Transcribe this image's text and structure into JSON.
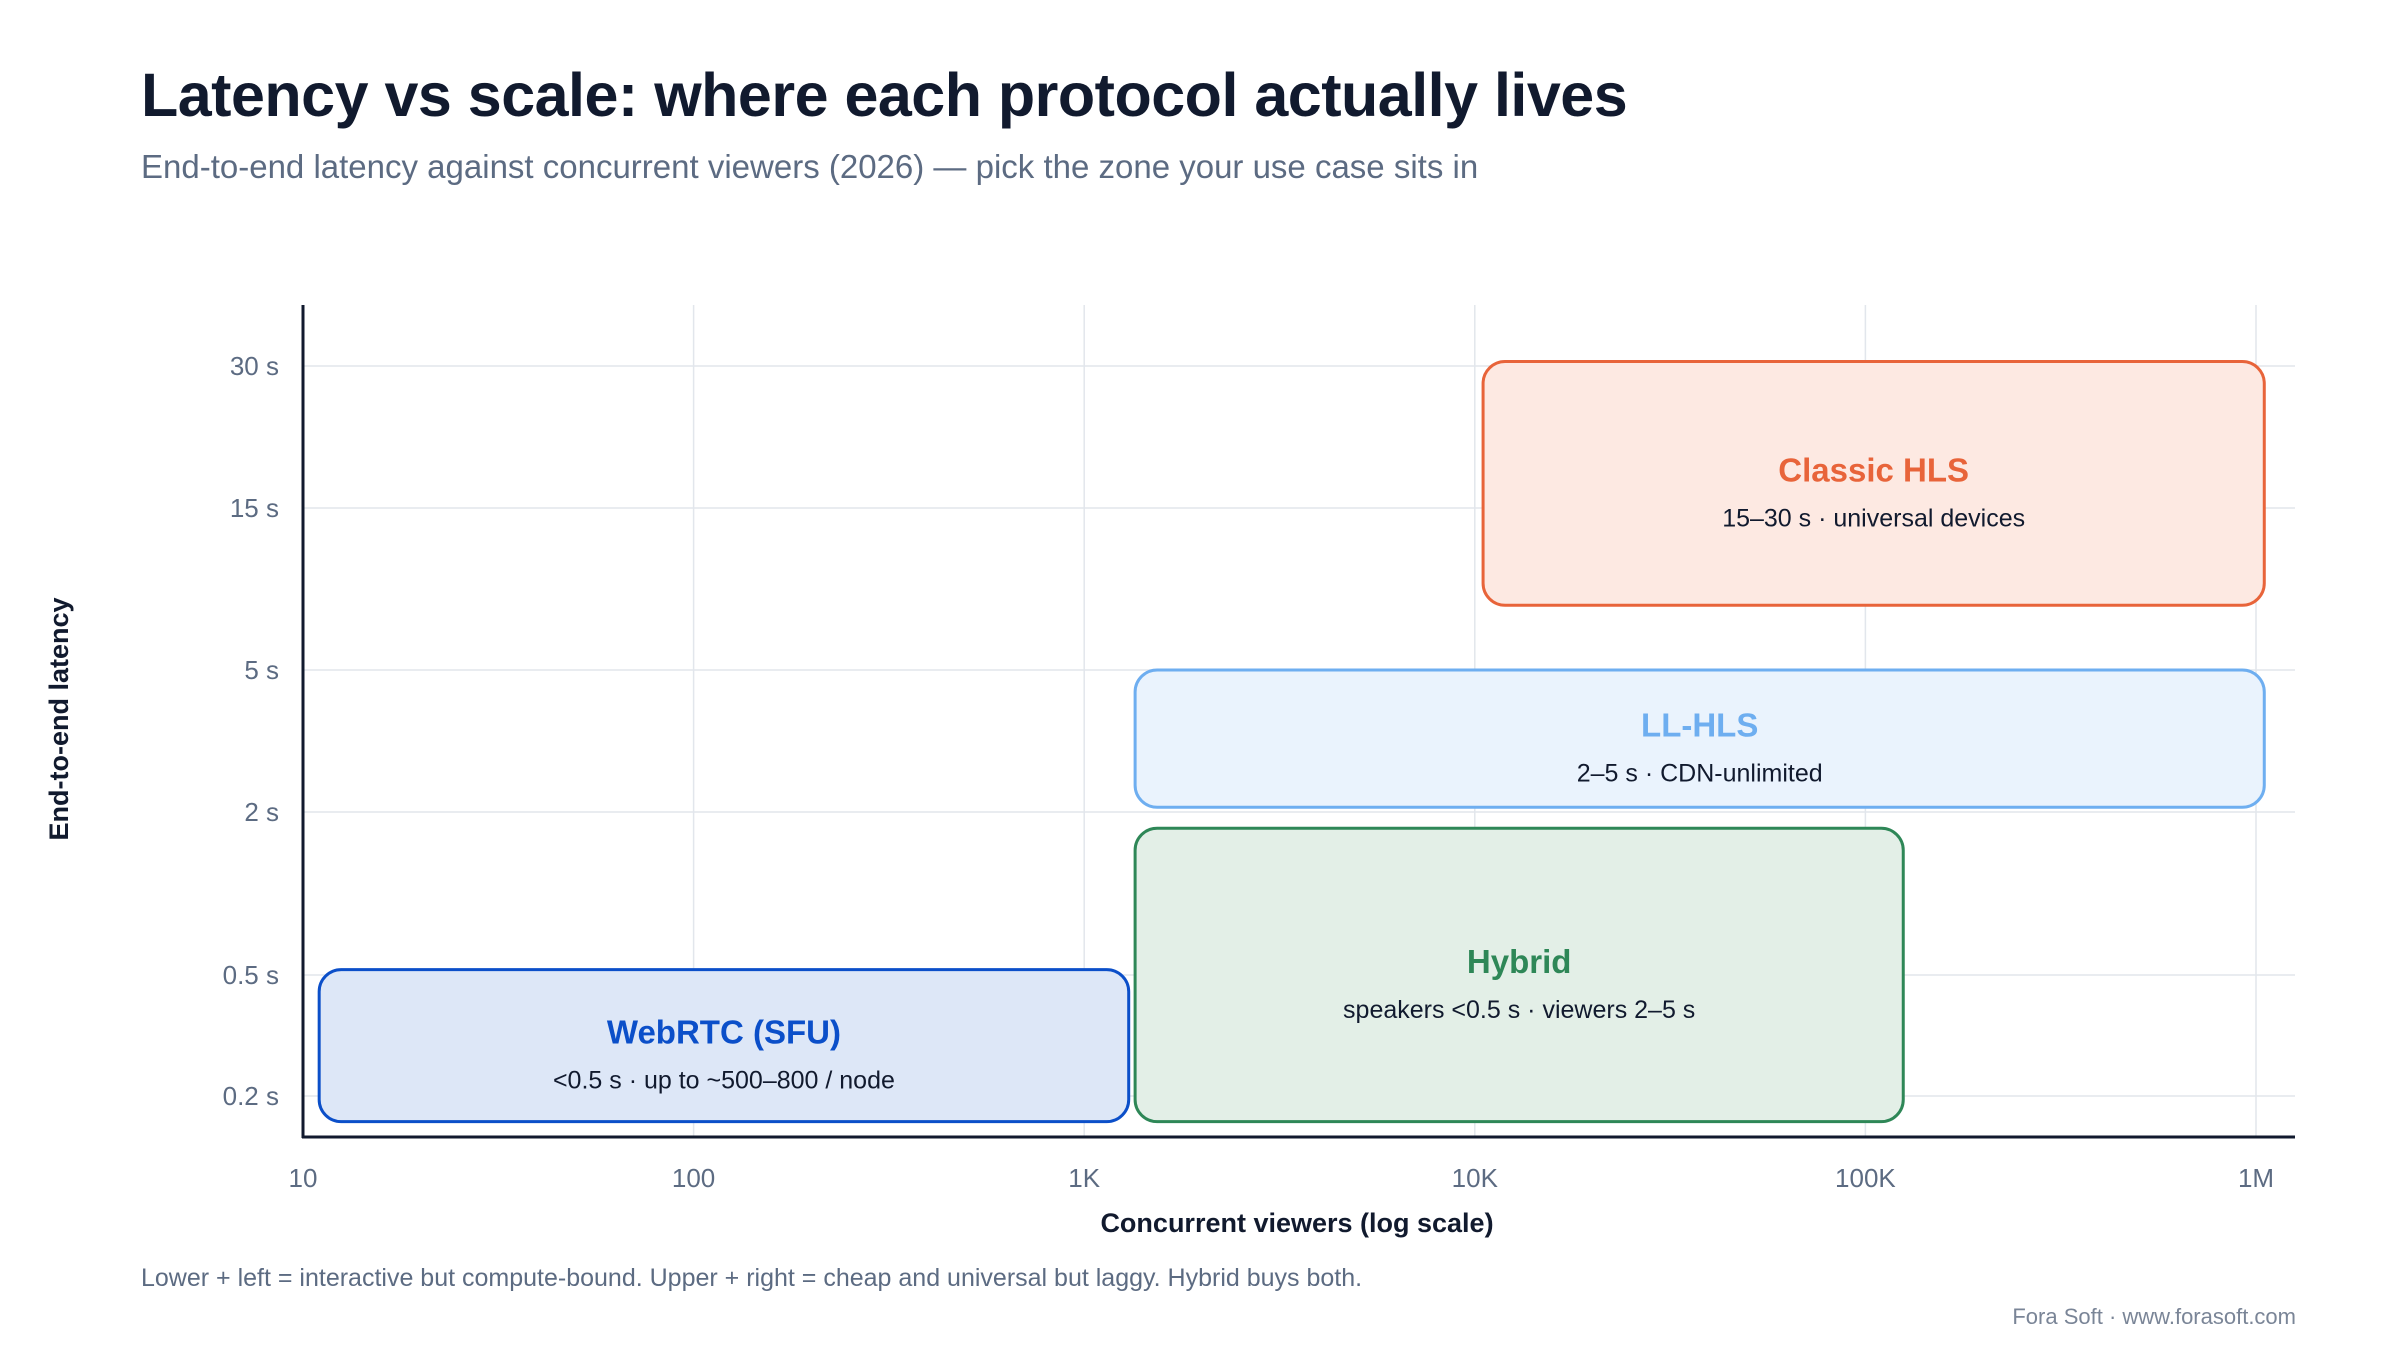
{
  "header": {
    "title": "Latency vs scale: where each protocol actually lives",
    "subtitle": "End-to-end latency against concurrent viewers (2026) — pick the zone your use case sits in"
  },
  "chart_data": {
    "type": "area",
    "title": "Latency vs scale: where each protocol actually lives",
    "subtitle": "End-to-end latency against concurrent viewers (2026) — pick the zone your use case sits in",
    "xlabel": "Concurrent viewers (log scale)",
    "ylabel": "End-to-end latency",
    "x_scale": "log",
    "xlim": [
      10,
      1000000
    ],
    "x_ticks": [
      {
        "value": 10,
        "label": "10"
      },
      {
        "value": 100,
        "label": "100"
      },
      {
        "value": 1000,
        "label": "1K"
      },
      {
        "value": 10000,
        "label": "10K"
      },
      {
        "value": 100000,
        "label": "100K"
      },
      {
        "value": 1000000,
        "label": "1M"
      }
    ],
    "y_ticks": [
      {
        "value": 0.2,
        "label": "0.2 s"
      },
      {
        "value": 0.5,
        "label": "0.5 s"
      },
      {
        "value": 2,
        "label": "2 s"
      },
      {
        "value": 5,
        "label": "5 s"
      },
      {
        "value": 15,
        "label": "15 s"
      },
      {
        "value": 30,
        "label": "30 s"
      }
    ],
    "grid": true,
    "zones": [
      {
        "name": "WebRTC (SFU)",
        "detail": "<0.5 s · up to ~500–800 / node",
        "x_range": [
          11,
          1300
        ],
        "y_range": [
          0.15,
          0.55
        ],
        "stroke": "#0b4fc9",
        "fill": "#dde7f7",
        "label_color": "#0b4fc9"
      },
      {
        "name": "Hybrid",
        "detail": "speakers <0.5 s · viewers 2–5 s",
        "x_range": [
          1350,
          125000
        ],
        "y_range": [
          0.15,
          1.85
        ],
        "stroke": "#2e8757",
        "fill": "#e3efe7",
        "label_color": "#2e8757"
      },
      {
        "name": "LL-HLS",
        "detail": "2–5 s · CDN-unlimited",
        "x_range": [
          1350,
          1050000
        ],
        "y_range": [
          2.1,
          5
        ],
        "stroke": "#6eaef0",
        "fill": "#eaf3fd",
        "label_color": "#6eaef0"
      },
      {
        "name": "Classic HLS",
        "detail": "15–30 s · universal devices",
        "x_range": [
          10500,
          1050000
        ],
        "y_range": [
          9,
          30.5
        ],
        "stroke": "#e8643a",
        "fill": "#fde9e2",
        "label_color": "#e8643a"
      }
    ]
  },
  "footer": {
    "note": "Lower + left = interactive but compute-bound. Upper + right = cheap and universal but laggy. Hybrid buys both.",
    "credit": "Fora Soft · www.forasoft.com"
  }
}
